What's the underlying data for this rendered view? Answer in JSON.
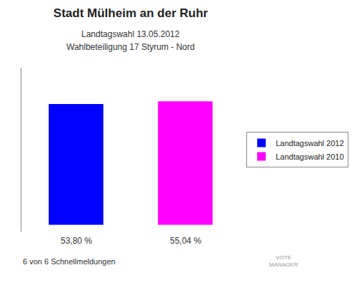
{
  "chart_data": {
    "type": "bar",
    "title": "Stadt Mülheim an der Ruhr",
    "subtitle": [
      "Landtagswahl 13.05.2012",
      "Wahlbeteiligung 17 Styrum - Nord"
    ],
    "categories": [
      "Landtagswahl 2012",
      "Landtagswahl 2010"
    ],
    "values": [
      53.8,
      55.04
    ],
    "value_labels": [
      "53,80 %",
      "55,04 %"
    ],
    "data_labels": true,
    "colors": [
      "#0000ff",
      "#ff00ff"
    ],
    "ylim": [
      -3,
      70
    ],
    "tick_labels": false,
    "grid": false,
    "legend": "right",
    "annotations": [
      "6 von 6 Schnellmeldungen",
      "VOTE\nMANAGER"
    ]
  }
}
